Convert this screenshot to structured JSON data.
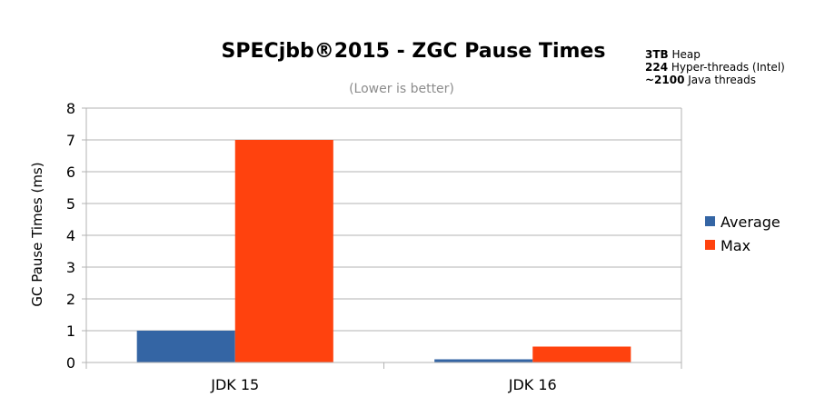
{
  "annotation": {
    "lines": [
      {
        "bold": "3TB",
        "rest": " Heap"
      },
      {
        "bold": "224",
        "rest": " Hyper-threads (Intel)"
      },
      {
        "bold": "~2100",
        "rest": " Java threads"
      }
    ]
  },
  "chart_data": {
    "type": "bar",
    "title": "SPECjbb®2015 - ZGC Pause Times",
    "subtitle": "(Lower is better)",
    "xlabel": "",
    "ylabel": "GC Pause Times (ms)",
    "categories": [
      "JDK 15",
      "JDK 16"
    ],
    "series": [
      {
        "name": "Average",
        "values": [
          1.0,
          0.1
        ],
        "color": "#3465a4"
      },
      {
        "name": "Max",
        "values": [
          7.0,
          0.5
        ],
        "color": "#ff420e"
      }
    ],
    "ylim": [
      0,
      8
    ],
    "yticks": [
      "0",
      "1",
      "2",
      "3",
      "4",
      "5",
      "6",
      "7",
      "8"
    ],
    "grid": true,
    "legend_position": "right"
  }
}
